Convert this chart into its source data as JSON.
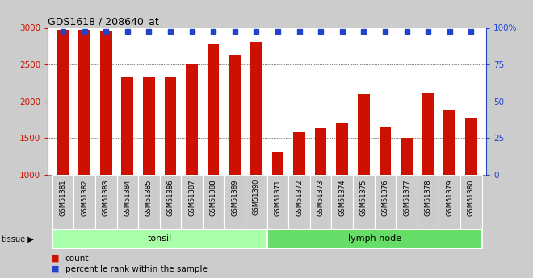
{
  "title": "GDS1618 / 208640_at",
  "categories": [
    "GSM51381",
    "GSM51382",
    "GSM51383",
    "GSM51384",
    "GSM51385",
    "GSM51386",
    "GSM51387",
    "GSM51388",
    "GSM51389",
    "GSM51390",
    "GSM51371",
    "GSM51372",
    "GSM51373",
    "GSM51374",
    "GSM51375",
    "GSM51376",
    "GSM51377",
    "GSM51378",
    "GSM51379",
    "GSM51380"
  ],
  "counts": [
    2970,
    2975,
    2965,
    2320,
    2330,
    2330,
    2500,
    2780,
    2630,
    2810,
    1300,
    1580,
    1630,
    1700,
    2090,
    1650,
    1500,
    2110,
    1880,
    1760
  ],
  "percentile": [
    99,
    99,
    99,
    99,
    99,
    99,
    99,
    99,
    99,
    99,
    99,
    99,
    99,
    99,
    99,
    99,
    99,
    99,
    99,
    99
  ],
  "bar_color": "#cc1100",
  "dot_color": "#2244cc",
  "ymin": 1000,
  "ymax": 3000,
  "yticks": [
    1000,
    1500,
    2000,
    2500,
    3000
  ],
  "y2ticks": [
    0,
    25,
    50,
    75,
    100
  ],
  "tissue_groups": [
    {
      "label": "tonsil",
      "start": 0,
      "end": 10,
      "color": "#aaffaa"
    },
    {
      "label": "lymph node",
      "start": 10,
      "end": 20,
      "color": "#66dd66"
    }
  ],
  "legend_count_label": "count",
  "legend_pct_label": "percentile rank within the sample",
  "tissue_label": "tissue ▶",
  "bg_color": "#cccccc",
  "tick_bg_color": "#cccccc",
  "plot_bg_color": "#ffffff"
}
